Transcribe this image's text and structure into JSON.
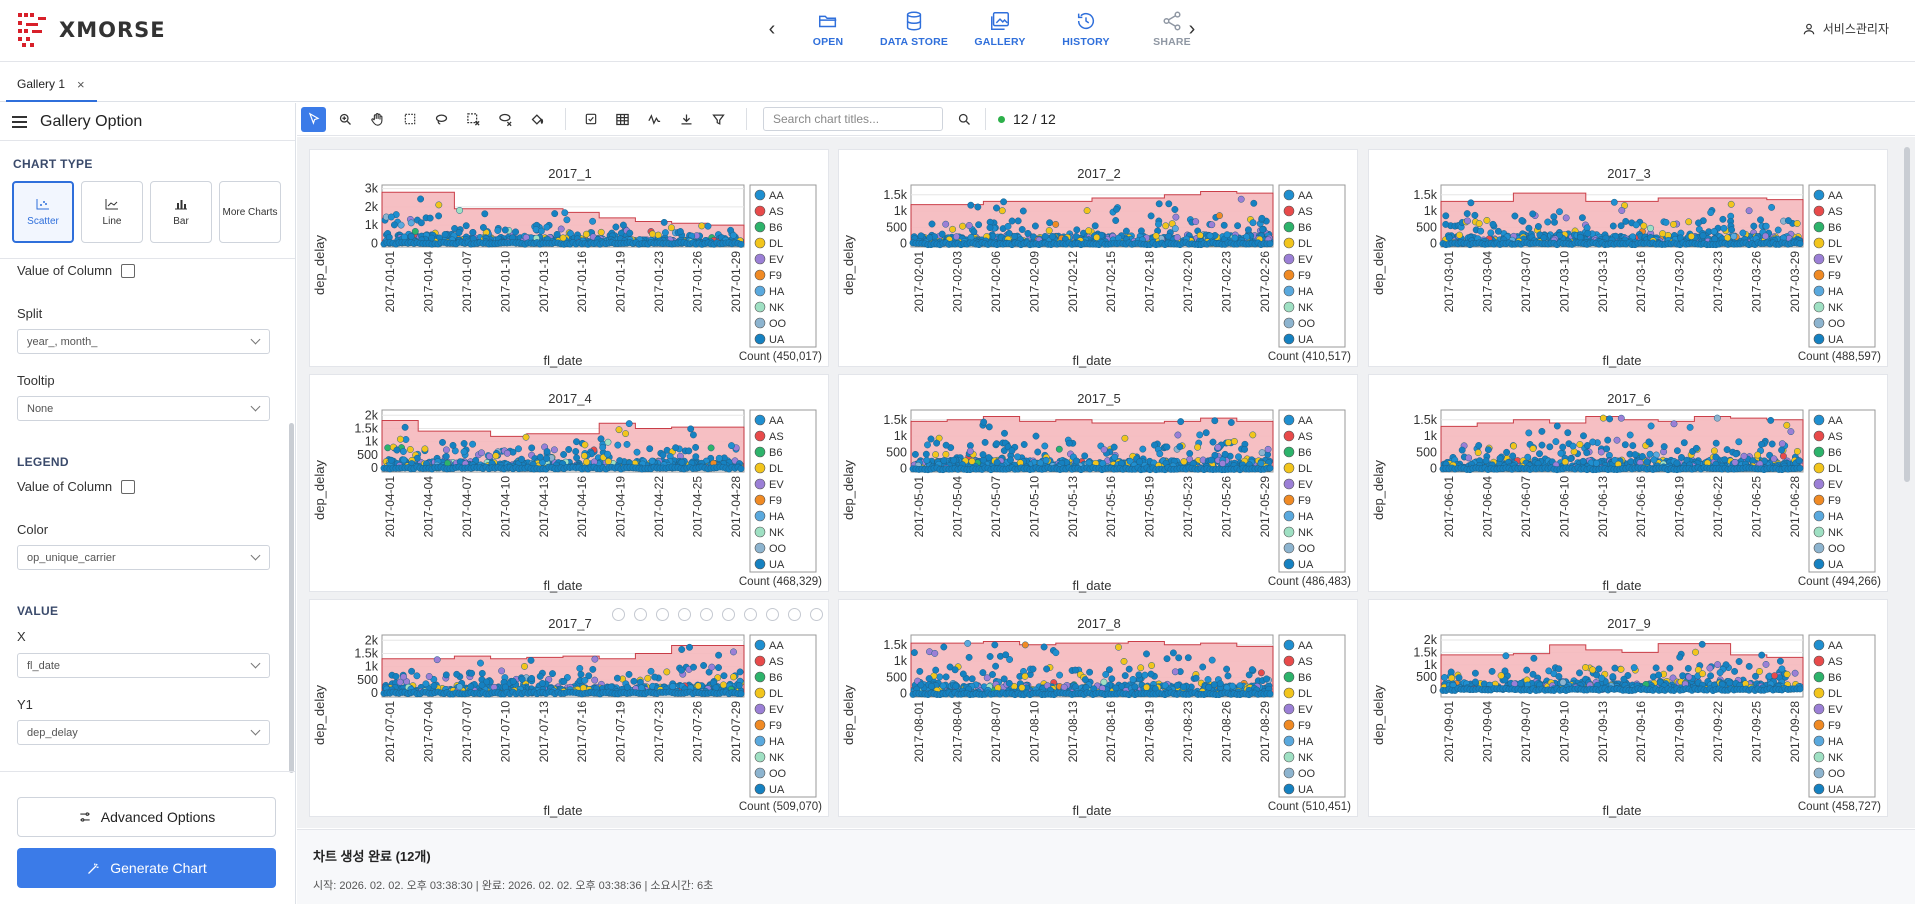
{
  "app": {
    "logo_text": "XMORSE",
    "brand_color": "#d8202a",
    "accent_color": "#3b7be8"
  },
  "nav": {
    "items": [
      {
        "label": "OPEN",
        "icon": "folder-open-icon"
      },
      {
        "label": "DATA STORE",
        "icon": "database-icon"
      },
      {
        "label": "GALLERY",
        "icon": "gallery-icon"
      },
      {
        "label": "HISTORY",
        "icon": "history-icon"
      },
      {
        "label": "SHARE",
        "icon": "share-icon",
        "disabled": true
      }
    ]
  },
  "user": {
    "name": "서비스관리자"
  },
  "tabs": [
    {
      "label": "Gallery 1"
    }
  ],
  "sidebar": {
    "title": "Gallery Option",
    "chart_type_label": "CHART TYPE",
    "chart_types": [
      {
        "label": "Scatter",
        "active": true
      },
      {
        "label": "Line"
      },
      {
        "label": "Bar"
      },
      {
        "label": "More Charts"
      }
    ],
    "value_of_column_1": "Value of Column",
    "split_label": "Split",
    "split_value": "year_, month_",
    "tooltip_label": "Tooltip",
    "tooltip_value": "None",
    "legend_label": "LEGEND",
    "value_of_column_2": "Value of Column",
    "color_label": "Color",
    "color_value": "op_unique_carrier",
    "value_label": "VALUE",
    "x_label": "X",
    "x_value": "fl_date",
    "y1_label": "Y1",
    "y1_value": "dep_delay",
    "advanced_button": "Advanced Options",
    "generate_button": "Generate Chart"
  },
  "toolbar": {
    "search_placeholder": "Search chart titles...",
    "count": "12 / 12"
  },
  "legend": {
    "carriers": [
      {
        "code": "AA",
        "color": "#1f8fd0"
      },
      {
        "code": "AS",
        "color": "#e84a4a"
      },
      {
        "code": "B6",
        "color": "#2db36b"
      },
      {
        "code": "DL",
        "color": "#f2c51c"
      },
      {
        "code": "EV",
        "color": "#9b7fd6"
      },
      {
        "code": "F9",
        "color": "#f08a24"
      },
      {
        "code": "HA",
        "color": "#5aa9de"
      },
      {
        "code": "NK",
        "color": "#9fe0c3"
      },
      {
        "code": "OO",
        "color": "#8db4cf"
      },
      {
        "code": "UA",
        "color": "#1581c1"
      }
    ]
  },
  "chart_data": [
    {
      "type": "scatter",
      "title": "2017_1",
      "xlabel": "fl_date",
      "ylabel": "dep_delay",
      "count": "Count (450,017)",
      "yticks": [
        "3k",
        "2k",
        "1k",
        "0"
      ],
      "ylim": [
        -200,
        3200
      ],
      "xticks": [
        "2017-01-01",
        "2017-01-04",
        "2017-01-07",
        "2017-01-10",
        "2017-01-13",
        "2017-01-16",
        "2017-01-19",
        "2017-01-23",
        "2017-01-26",
        "2017-01-29"
      ],
      "envelope": [
        2800,
        2800,
        1900,
        1900,
        1900,
        1700,
        1400,
        1200,
        1100,
        1000
      ]
    },
    {
      "type": "scatter",
      "title": "2017_2",
      "xlabel": "fl_date",
      "ylabel": "dep_delay",
      "count": "Count (410,517)",
      "yticks": [
        "1.5k",
        "1k",
        "500",
        "0"
      ],
      "ylim": [
        -100,
        1800
      ],
      "xticks": [
        "2017-02-01",
        "2017-02-03",
        "2017-02-06",
        "2017-02-09",
        "2017-02-12",
        "2017-02-15",
        "2017-02-18",
        "2017-02-20",
        "2017-02-23",
        "2017-02-26"
      ],
      "envelope": [
        1200,
        1200,
        1300,
        1300,
        1300,
        1400,
        1400,
        1500,
        1600,
        1550
      ]
    },
    {
      "type": "scatter",
      "title": "2017_3",
      "xlabel": "fl_date",
      "ylabel": "dep_delay",
      "count": "Count (488,597)",
      "yticks": [
        "1.5k",
        "1k",
        "500",
        "0"
      ],
      "ylim": [
        -100,
        1800
      ],
      "xticks": [
        "2017-03-01",
        "2017-03-04",
        "2017-03-07",
        "2017-03-10",
        "2017-03-13",
        "2017-03-16",
        "2017-03-20",
        "2017-03-23",
        "2017-03-26",
        "2017-03-29"
      ],
      "envelope": [
        1300,
        1300,
        1550,
        1550,
        1300,
        1300,
        1400,
        1400,
        1400,
        1350
      ]
    },
    {
      "type": "scatter",
      "title": "2017_4",
      "xlabel": "fl_date",
      "ylabel": "dep_delay",
      "count": "Count (468,329)",
      "yticks": [
        "2k",
        "1.5k",
        "1k",
        "500",
        "0"
      ],
      "ylim": [
        -150,
        2200
      ],
      "xticks": [
        "2017-04-01",
        "2017-04-04",
        "2017-04-07",
        "2017-04-10",
        "2017-04-13",
        "2017-04-16",
        "2017-04-19",
        "2017-04-22",
        "2017-04-25",
        "2017-04-28"
      ],
      "envelope": [
        1800,
        1400,
        1400,
        1200,
        1300,
        1300,
        1700,
        1500,
        1550,
        1550
      ]
    },
    {
      "type": "scatter",
      "title": "2017_5",
      "xlabel": "fl_date",
      "ylabel": "dep_delay",
      "count": "Count (486,483)",
      "yticks": [
        "1.5k",
        "1k",
        "500",
        "0"
      ],
      "ylim": [
        -100,
        1800
      ],
      "xticks": [
        "2017-05-01",
        "2017-05-04",
        "2017-05-07",
        "2017-05-10",
        "2017-05-13",
        "2017-05-16",
        "2017-05-19",
        "2017-05-23",
        "2017-05-26",
        "2017-05-29"
      ],
      "envelope": [
        1450,
        1500,
        1600,
        1450,
        1500,
        1400,
        1400,
        1450,
        1550,
        1450
      ]
    },
    {
      "type": "scatter",
      "title": "2017_6",
      "xlabel": "fl_date",
      "ylabel": "dep_delay",
      "count": "Count (494,266)",
      "yticks": [
        "1.5k",
        "1k",
        "500",
        "0"
      ],
      "ylim": [
        -100,
        1800
      ],
      "xticks": [
        "2017-06-01",
        "2017-06-04",
        "2017-06-07",
        "2017-06-10",
        "2017-06-13",
        "2017-06-16",
        "2017-06-19",
        "2017-06-22",
        "2017-06-25",
        "2017-06-28"
      ],
      "envelope": [
        1300,
        1400,
        1500,
        1400,
        1600,
        1500,
        1450,
        1600,
        1550,
        1500
      ]
    },
    {
      "type": "scatter",
      "title": "2017_7",
      "xlabel": "fl_date",
      "ylabel": "dep_delay",
      "count": "Count (509,070)",
      "yticks": [
        "2k",
        "1.5k",
        "1k",
        "500",
        "0"
      ],
      "ylim": [
        -150,
        2200
      ],
      "xticks": [
        "2017-07-01",
        "2017-07-04",
        "2017-07-07",
        "2017-07-10",
        "2017-07-13",
        "2017-07-16",
        "2017-07-19",
        "2017-07-23",
        "2017-07-26",
        "2017-07-29"
      ],
      "envelope": [
        1300,
        1300,
        1400,
        1300,
        1350,
        1400,
        1300,
        1500,
        1800,
        1800
      ]
    },
    {
      "type": "scatter",
      "title": "2017_8",
      "xlabel": "fl_date",
      "ylabel": "dep_delay",
      "count": "Count (510,451)",
      "yticks": [
        "1.5k",
        "1k",
        "500",
        "0"
      ],
      "ylim": [
        -100,
        1800
      ],
      "xticks": [
        "2017-08-01",
        "2017-08-04",
        "2017-08-07",
        "2017-08-10",
        "2017-08-13",
        "2017-08-16",
        "2017-08-19",
        "2017-08-23",
        "2017-08-26",
        "2017-08-29"
      ],
      "envelope": [
        1550,
        1550,
        1600,
        1500,
        1550,
        1550,
        1600,
        1500,
        1550,
        1450
      ]
    },
    {
      "type": "scatter",
      "title": "2017_9",
      "xlabel": "fl_date",
      "ylabel": "dep_delay",
      "count": "Count (458,727)",
      "yticks": [
        "2k",
        "1.5k",
        "1k",
        "500",
        "0"
      ],
      "ylim": [
        -300,
        2200
      ],
      "xticks": [
        "2017-09-01",
        "2017-09-04",
        "2017-09-07",
        "2017-09-10",
        "2017-09-13",
        "2017-09-16",
        "2017-09-19",
        "2017-09-22",
        "2017-09-25",
        "2017-09-28"
      ],
      "envelope": [
        1400,
        1400,
        1450,
        1800,
        1600,
        1500,
        1850,
        1850,
        1400,
        1300
      ]
    }
  ],
  "footer": {
    "title": "차트 생성 완료 (12개)",
    "detail": "시작: 2026. 02. 02. 오후 03:38:30 | 완료: 2026. 02. 02. 오후 03:38:36 | 소요시간: 6초"
  }
}
